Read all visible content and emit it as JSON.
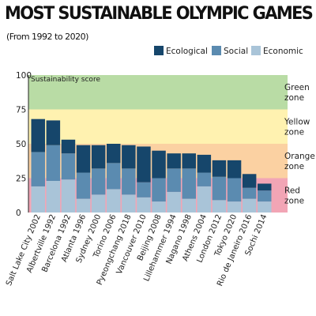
{
  "title": "MOST SUSTAINABLE OLYMPIC GAMES",
  "subtitle": "(From 1992 to 2020)",
  "colors": {
    "ecological": "#16466b",
    "social": "#5b8bb0",
    "economic": "#a9c4d8",
    "green_zone": "#b9dca5",
    "yellow_zone": "#fff2b0",
    "orange_zone": "#fbd1a2",
    "red_zone": "#f2a5b5"
  },
  "chart_data": {
    "type": "bar",
    "stacked": true,
    "ylabel": "Sustainability score",
    "ylim": [
      0,
      100
    ],
    "yticks": [
      0,
      25,
      50,
      75,
      100
    ],
    "grid": false,
    "legend_position": "top-right",
    "categories": [
      "Salt Lake City 2002",
      "Albertville 1992",
      "Barcelona 1992",
      "Atlanta 1996",
      "Sydney 2000",
      "Torino 2006",
      "Pyeongchang 2018",
      "Vancouver 2010",
      "Beijing 2008",
      "Lillehammer 1994",
      "Nagano 1998",
      "Athens 2004",
      "London 2012",
      "Tokyo 2020",
      "Rio de Janeiro 2016",
      "Sochi 2014"
    ],
    "series": [
      {
        "name": "Economic",
        "values": [
          19,
          23,
          24,
          10,
          13,
          17,
          13,
          11,
          8,
          15,
          10,
          19,
          9,
          8,
          10,
          8
        ]
      },
      {
        "name": "Social",
        "values": [
          25,
          26,
          19,
          19,
          19,
          19,
          19,
          11,
          17,
          17,
          22,
          10,
          17,
          17,
          8,
          8
        ]
      },
      {
        "name": "Ecological",
        "values": [
          24,
          18,
          10,
          20,
          17,
          14,
          17,
          26,
          20,
          11,
          11,
          13,
          12,
          13,
          10,
          5
        ]
      }
    ],
    "zones": [
      {
        "label": "Green zone",
        "from": 75,
        "to": 100
      },
      {
        "label": "Yellow zone",
        "from": 50,
        "to": 75
      },
      {
        "label": "Orange zone",
        "from": 25,
        "to": 50
      },
      {
        "label": "Red zone",
        "from": 0,
        "to": 25
      }
    ]
  }
}
